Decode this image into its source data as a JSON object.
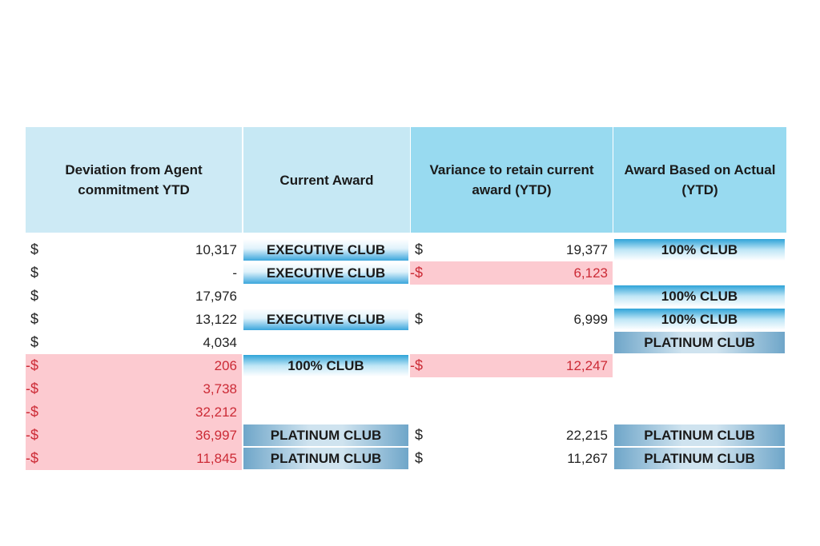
{
  "headers": {
    "deviation": "Deviation from Agent commitment YTD",
    "current_award": "Current Award",
    "variance": "Variance to retain current award (YTD)",
    "award_actual": "Award Based on Actual (YTD)"
  },
  "rows": [
    {
      "dev_cur": "$",
      "dev_val": "10,317",
      "dev_neg": false,
      "current": "EXECUTIVE CLUB",
      "cur_style": "exec",
      "var_cur": "$",
      "var_val": "19,377",
      "var_neg": false,
      "award": "100% CLUB",
      "awd_style": "club"
    },
    {
      "dev_cur": "$",
      "dev_val": "-",
      "dev_neg": false,
      "current": "EXECUTIVE CLUB",
      "cur_style": "exec",
      "var_cur": "-$",
      "var_val": "6,123",
      "var_neg": true,
      "award": "",
      "awd_style": "noaward"
    },
    {
      "dev_cur": "$",
      "dev_val": "17,976",
      "dev_neg": false,
      "current": "",
      "cur_style": "noaward",
      "var_cur": "",
      "var_val": "",
      "var_neg": false,
      "award": "100% CLUB",
      "awd_style": "club"
    },
    {
      "dev_cur": "$",
      "dev_val": "13,122",
      "dev_neg": false,
      "current": "EXECUTIVE CLUB",
      "cur_style": "exec",
      "var_cur": "$",
      "var_val": "6,999",
      "var_neg": false,
      "award": "100% CLUB",
      "awd_style": "club"
    },
    {
      "dev_cur": "$",
      "dev_val": "4,034",
      "dev_neg": false,
      "current": "",
      "cur_style": "noaward",
      "var_cur": "",
      "var_val": "",
      "var_neg": false,
      "award": "PLATINUM CLUB",
      "awd_style": "plat"
    },
    {
      "dev_cur": "-$",
      "dev_val": "206",
      "dev_neg": true,
      "current": "100% CLUB",
      "cur_style": "club",
      "var_cur": "-$",
      "var_val": "12,247",
      "var_neg": true,
      "award": "",
      "awd_style": "noaward"
    },
    {
      "dev_cur": "-$",
      "dev_val": "3,738",
      "dev_neg": true,
      "current": "",
      "cur_style": "noaward",
      "var_cur": "",
      "var_val": "",
      "var_neg": false,
      "award": "",
      "awd_style": "noaward"
    },
    {
      "dev_cur": "-$",
      "dev_val": "32,212",
      "dev_neg": true,
      "current": "",
      "cur_style": "noaward",
      "var_cur": "",
      "var_val": "",
      "var_neg": false,
      "award": "",
      "awd_style": "noaward"
    },
    {
      "dev_cur": "-$",
      "dev_val": "36,997",
      "dev_neg": true,
      "current": "PLATINUM CLUB",
      "cur_style": "plat",
      "var_cur": "$",
      "var_val": "22,215",
      "var_neg": false,
      "award": "PLATINUM CLUB",
      "awd_style": "plat"
    },
    {
      "dev_cur": "-$",
      "dev_val": "11,845",
      "dev_neg": true,
      "current": "PLATINUM CLUB",
      "cur_style": "plat",
      "var_cur": "$",
      "var_val": "11,267",
      "var_neg": false,
      "award": "PLATINUM CLUB",
      "awd_style": "plat"
    }
  ]
}
